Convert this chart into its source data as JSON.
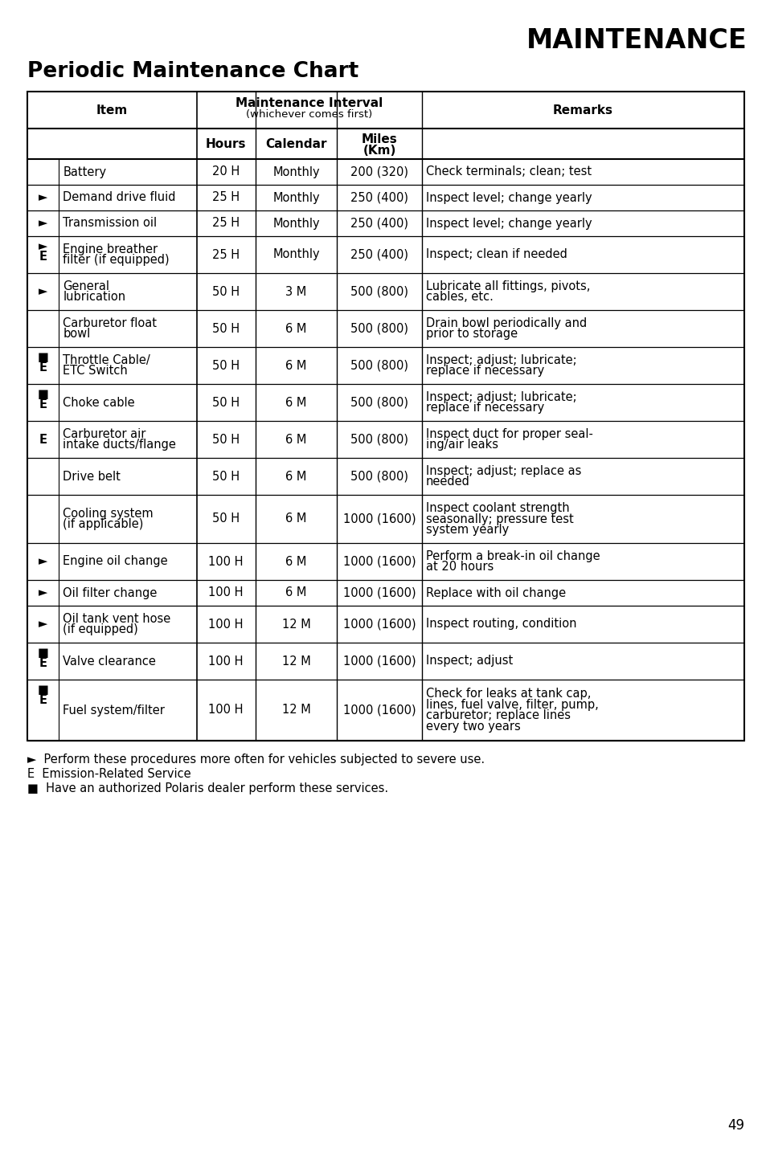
{
  "title_right": "MAINTENANCE",
  "title_left": "Periodic Maintenance Chart",
  "page_number": "49",
  "rows": [
    {
      "icon": "",
      "item": "Battery",
      "hours": "20 H",
      "calendar": "Monthly",
      "miles": "200 (320)",
      "remarks": "Check terminals; clean; test"
    },
    {
      "icon": "►",
      "item": "Demand drive fluid",
      "hours": "25 H",
      "calendar": "Monthly",
      "miles": "250 (400)",
      "remarks": "Inspect level; change yearly"
    },
    {
      "icon": "►",
      "item": "Transmission oil",
      "hours": "25 H",
      "calendar": "Monthly",
      "miles": "250 (400)",
      "remarks": "Inspect level; change yearly"
    },
    {
      "icon": "►\nE",
      "item": "Engine breather\nfilter (if equipped)",
      "hours": "25 H",
      "calendar": "Monthly",
      "miles": "250 (400)",
      "remarks": "Inspect; clean if needed"
    },
    {
      "icon": "►",
      "item": "General\nlubrication",
      "hours": "50 H",
      "calendar": "3 M",
      "miles": "500 (800)",
      "remarks": "Lubricate all fittings, pivots,\ncables, etc."
    },
    {
      "icon": "",
      "item": "Carburetor float\nbowl",
      "hours": "50 H",
      "calendar": "6 M",
      "miles": "500 (800)",
      "remarks": "Drain bowl periodically and\nprior to storage"
    },
    {
      "icon": "■\nE",
      "item": "Throttle Cable/\nETC Switch",
      "hours": "50 H",
      "calendar": "6 M",
      "miles": "500 (800)",
      "remarks": "Inspect; adjust; lubricate;\nreplace if necessary"
    },
    {
      "icon": "■\nE",
      "item": "Choke cable",
      "hours": "50 H",
      "calendar": "6 M",
      "miles": "500 (800)",
      "remarks": "Inspect; adjust; lubricate;\nreplace if necessary"
    },
    {
      "icon": "E",
      "item": "Carburetor air\nintake ducts/flange",
      "hours": "50 H",
      "calendar": "6 M",
      "miles": "500 (800)",
      "remarks": "Inspect duct for proper seal-\ning/air leaks"
    },
    {
      "icon": "",
      "item": "Drive belt",
      "hours": "50 H",
      "calendar": "6 M",
      "miles": "500 (800)",
      "remarks": "Inspect; adjust; replace as\nneeded"
    },
    {
      "icon": "",
      "item": "Cooling system\n(if applicable)",
      "hours": "50 H",
      "calendar": "6 M",
      "miles": "1000 (1600)",
      "remarks": "Inspect coolant strength\nseasonally; pressure test\nsystem yearly"
    },
    {
      "icon": "►",
      "item": "Engine oil change",
      "hours": "100 H",
      "calendar": "6 M",
      "miles": "1000 (1600)",
      "remarks": "Perform a break-in oil change\nat 20 hours"
    },
    {
      "icon": "►",
      "item": "Oil filter change",
      "hours": "100 H",
      "calendar": "6 M",
      "miles": "1000 (1600)",
      "remarks": "Replace with oil change"
    },
    {
      "icon": "►",
      "item": "Oil tank vent hose\n(if equipped)",
      "hours": "100 H",
      "calendar": "12 M",
      "miles": "1000 (1600)",
      "remarks": "Inspect routing, condition"
    },
    {
      "icon": "■\nE",
      "item": "Valve clearance",
      "hours": "100 H",
      "calendar": "12 M",
      "miles": "1000 (1600)",
      "remarks": "Inspect; adjust"
    },
    {
      "icon": "■\nE",
      "item": "Fuel system/filter",
      "hours": "100 H",
      "calendar": "12 M",
      "miles": "1000 (1600)",
      "remarks": "Check for leaks at tank cap,\nlines, fuel valve, filter, pump,\ncarburetor; replace lines\nevery two years"
    }
  ],
  "footnotes": [
    "►  Perform these procedures more often for vehicles subjected to severe use.",
    "E  Emission-Related Service",
    "■  Have an authorized Polaris dealer perform these services."
  ],
  "background_color": "#ffffff",
  "text_color": "#000000"
}
